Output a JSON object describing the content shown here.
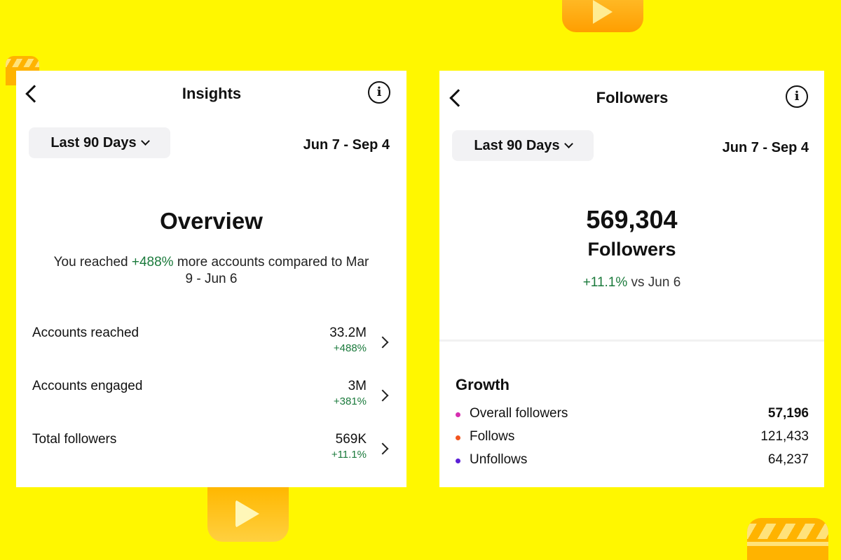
{
  "insights": {
    "title": "Insights",
    "range_label": "Last 90 Days",
    "date_range": "Jun 7 - Sep 4",
    "overview_title": "Overview",
    "overview_text_before": "You reached ",
    "overview_text_highlight": "+488%",
    "overview_text_after": " more accounts compared to Mar 9 - Jun 6",
    "metrics": [
      {
        "label": "Accounts reached",
        "value": "33.2M",
        "change": "+488%"
      },
      {
        "label": "Accounts engaged",
        "value": "3M",
        "change": "+381%"
      },
      {
        "label": "Total followers",
        "value": "569K",
        "change": "+11.1%"
      }
    ]
  },
  "followers": {
    "title": "Followers",
    "range_label": "Last 90 Days",
    "date_range": "Jun 7 - Sep 4",
    "count": "569,304",
    "count_label": "Followers",
    "change_value": "+11.1%",
    "change_suffix": " vs Jun 6",
    "growth_title": "Growth",
    "growth": [
      {
        "label": "Overall followers",
        "value": "57,196",
        "color": "#d62fb0"
      },
      {
        "label": "Follows",
        "value": "121,433",
        "color": "#f2551f"
      },
      {
        "label": "Unfollows",
        "value": "64,237",
        "color": "#5b1fd6"
      }
    ]
  },
  "colors": {
    "background": "#fff700",
    "positive": "#1b7a3c"
  }
}
